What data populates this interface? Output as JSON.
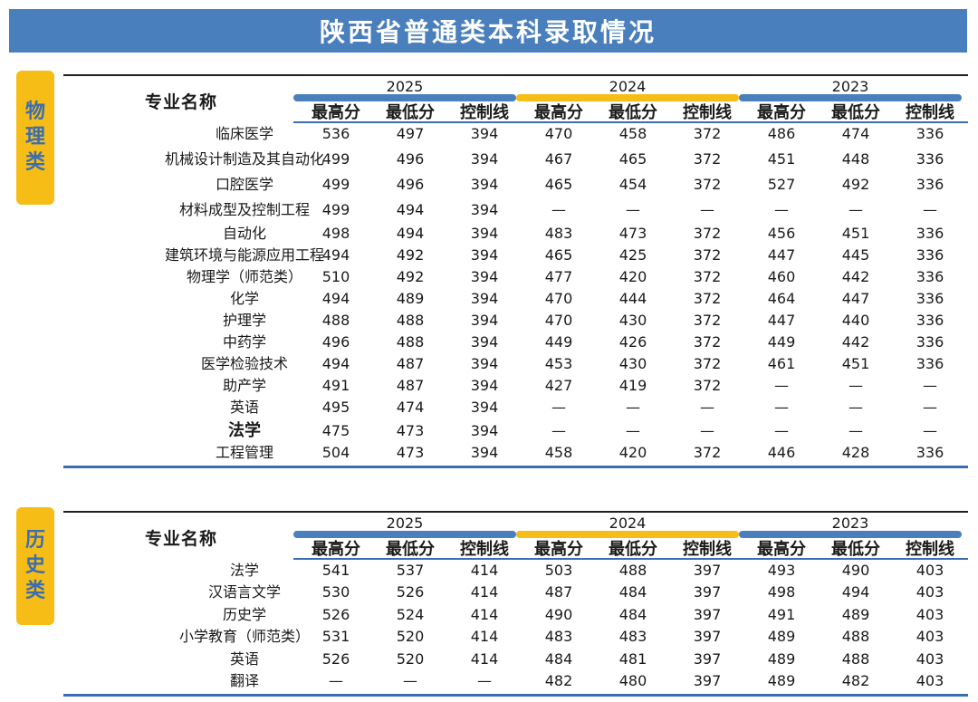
{
  "title": "陕西省普通类本科录取情况",
  "header": {
    "name_col": "专业名称",
    "years": [
      "2025",
      "2024",
      "2023"
    ],
    "year_colors": [
      "#4a7fbd",
      "#f6bd16",
      "#4a7fbd"
    ],
    "subcols": [
      "最高分",
      "最低分",
      "控制线"
    ]
  },
  "physics": {
    "tab": "物理类",
    "rows": [
      {
        "name": "临床医学",
        "v": [
          "536",
          "497",
          "394",
          "470",
          "458",
          "372",
          "486",
          "474",
          "336"
        ]
      },
      {
        "name": "机械设计制造及其自动化",
        "v": [
          "499",
          "496",
          "394",
          "467",
          "465",
          "372",
          "451",
          "448",
          "336"
        ]
      },
      {
        "name": "口腔医学",
        "v": [
          "499",
          "496",
          "394",
          "465",
          "454",
          "372",
          "527",
          "492",
          "336"
        ]
      },
      {
        "name": "材料成型及控制工程",
        "v": [
          "499",
          "494",
          "394",
          "—",
          "—",
          "—",
          "—",
          "—",
          "—"
        ]
      },
      {
        "name": "自动化",
        "v": [
          "498",
          "494",
          "394",
          "483",
          "473",
          "372",
          "456",
          "451",
          "336"
        ]
      },
      {
        "name": "建筑环境与能源应用工程",
        "v": [
          "494",
          "492",
          "394",
          "465",
          "425",
          "372",
          "447",
          "445",
          "336"
        ]
      },
      {
        "name": "物理学（师范类）",
        "v": [
          "510",
          "492",
          "394",
          "477",
          "420",
          "372",
          "460",
          "442",
          "336"
        ]
      },
      {
        "name": "化学",
        "v": [
          "494",
          "489",
          "394",
          "470",
          "444",
          "372",
          "464",
          "447",
          "336"
        ]
      },
      {
        "name": "护理学",
        "v": [
          "488",
          "488",
          "394",
          "470",
          "430",
          "372",
          "447",
          "440",
          "336"
        ]
      },
      {
        "name": "中药学",
        "v": [
          "496",
          "488",
          "394",
          "449",
          "426",
          "372",
          "449",
          "442",
          "336"
        ]
      },
      {
        "name": "医学检验技术",
        "v": [
          "494",
          "487",
          "394",
          "453",
          "430",
          "372",
          "461",
          "451",
          "336"
        ]
      },
      {
        "name": "助产学",
        "v": [
          "491",
          "487",
          "394",
          "427",
          "419",
          "372",
          "—",
          "—",
          "—"
        ]
      },
      {
        "name": "英语",
        "v": [
          "495",
          "474",
          "394",
          "—",
          "—",
          "—",
          "—",
          "—",
          "—"
        ]
      },
      {
        "name": "法学",
        "v": [
          "475",
          "473",
          "394",
          "—",
          "—",
          "—",
          "—",
          "—",
          "—"
        ],
        "bold": true
      },
      {
        "name": "工程管理",
        "v": [
          "504",
          "473",
          "394",
          "458",
          "420",
          "372",
          "446",
          "428",
          "336"
        ]
      }
    ]
  },
  "history": {
    "tab": "历史类",
    "rows": [
      {
        "name": "法学",
        "v": [
          "541",
          "537",
          "414",
          "503",
          "488",
          "397",
          "493",
          "490",
          "403"
        ]
      },
      {
        "name": "汉语言文学",
        "v": [
          "530",
          "526",
          "414",
          "487",
          "484",
          "397",
          "498",
          "494",
          "403"
        ]
      },
      {
        "name": "历史学",
        "v": [
          "526",
          "524",
          "414",
          "490",
          "484",
          "397",
          "491",
          "489",
          "403"
        ]
      },
      {
        "name": "小学教育（师范类）",
        "v": [
          "531",
          "520",
          "414",
          "483",
          "483",
          "397",
          "489",
          "488",
          "403"
        ]
      },
      {
        "name": "英语",
        "v": [
          "526",
          "520",
          "414",
          "484",
          "481",
          "397",
          "489",
          "488",
          "403"
        ]
      },
      {
        "name": "翻译",
        "v": [
          "—",
          "—",
          "—",
          "482",
          "480",
          "397",
          "489",
          "482",
          "403"
        ]
      }
    ]
  }
}
